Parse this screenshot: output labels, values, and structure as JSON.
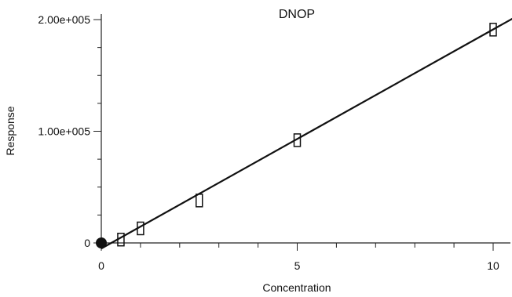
{
  "chart_data": {
    "type": "scatter",
    "title": "DNOP",
    "xlabel": "Concentration",
    "ylabel": "Response",
    "xlim": [
      0,
      10.5
    ],
    "ylim": [
      0,
      200000
    ],
    "x_ticks": {
      "major": [
        0,
        5,
        10
      ],
      "minor_step": 1,
      "labels": [
        "0",
        "5",
        "10"
      ]
    },
    "y_ticks": {
      "major": [
        0,
        100000,
        200000
      ],
      "minor_step": 25000,
      "labels": [
        "0",
        "1.00e+005",
        "2.00e+005"
      ]
    },
    "grid": false,
    "series": [
      {
        "marker": "open-rectangle",
        "x": [
          0.5,
          1,
          2.5,
          5,
          10
        ],
        "y": [
          3000,
          13000,
          38000,
          92000,
          191000
        ]
      },
      {
        "marker": "filled-circle",
        "x": [
          0
        ],
        "y": [
          0
        ]
      }
    ],
    "fit_line": {
      "from": [
        0,
        -5000
      ],
      "to": [
        10.5,
        201000
      ]
    }
  }
}
